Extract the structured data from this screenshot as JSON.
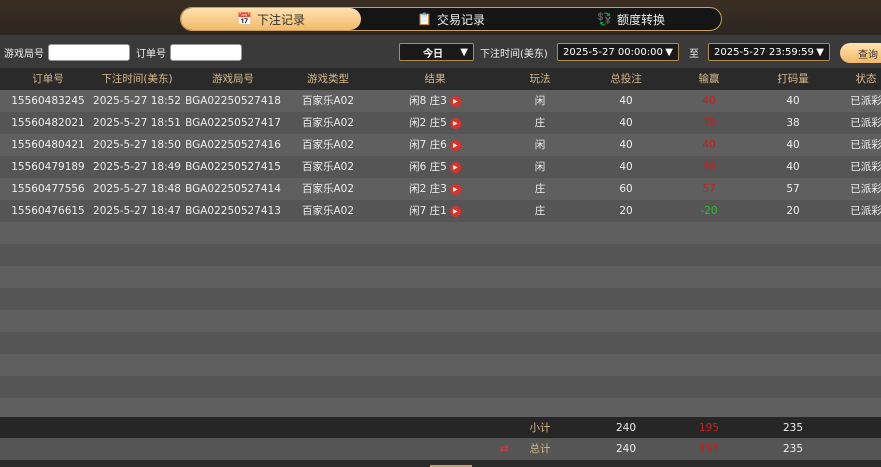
{
  "tabs": [
    {
      "label": "下注记录",
      "icon": "calendar-icon"
    },
    {
      "label": "交易记录",
      "icon": "clipboard-icon"
    },
    {
      "label": "额度转换",
      "icon": "coin-transfer-icon"
    }
  ],
  "filter": {
    "game_no_label": "游戏局号",
    "game_no_value": "",
    "order_no_label": "订单号",
    "order_no_value": "",
    "range_select": "今日",
    "time_label": "下注时间(美东)",
    "start": "2025-5-27 00:00:00",
    "to_label": "至",
    "end": "2025-5-27 23:59:59",
    "query_label": "查询"
  },
  "columns": [
    "订单号",
    "下注时间(美东)",
    "游戏局号",
    "游戏类型",
    "结果",
    "玩法",
    "总投注",
    "输赢",
    "打码量",
    "状态"
  ],
  "rows": [
    [
      "15560483245",
      "2025-5-27 18:52",
      "BGA02250527418",
      "百家乐A02",
      "闲8 庄3",
      "闲",
      "40",
      "40",
      "40",
      "已派彩"
    ],
    [
      "15560482021",
      "2025-5-27 18:51",
      "BGA02250527417",
      "百家乐A02",
      "闲2 庄5",
      "庄",
      "40",
      "38",
      "38",
      "已派彩"
    ],
    [
      "15560480421",
      "2025-5-27 18:50",
      "BGA02250527416",
      "百家乐A02",
      "闲7 庄6",
      "闲",
      "40",
      "40",
      "40",
      "已派彩"
    ],
    [
      "15560479189",
      "2025-5-27 18:49",
      "BGA02250527415",
      "百家乐A02",
      "闲6 庄5",
      "闲",
      "40",
      "40",
      "40",
      "已派彩"
    ],
    [
      "15560477556",
      "2025-5-27 18:48",
      "BGA02250527414",
      "百家乐A02",
      "闲2 庄3",
      "庄",
      "60",
      "57",
      "57",
      "已派彩"
    ],
    [
      "15560476615",
      "2025-5-27 18:47",
      "BGA02250527413",
      "百家乐A02",
      "闲7 庄1",
      "庄",
      "20",
      "-20",
      "20",
      "已派彩"
    ]
  ],
  "subtotal": {
    "label": "小计",
    "bet": "240",
    "win": "195",
    "valid": "235"
  },
  "total": {
    "label": "总计",
    "bet": "240",
    "win": "195",
    "valid": "235"
  },
  "colors": {
    "accent": "#f2b968",
    "win": "#c42020",
    "loss": "#29c229"
  }
}
